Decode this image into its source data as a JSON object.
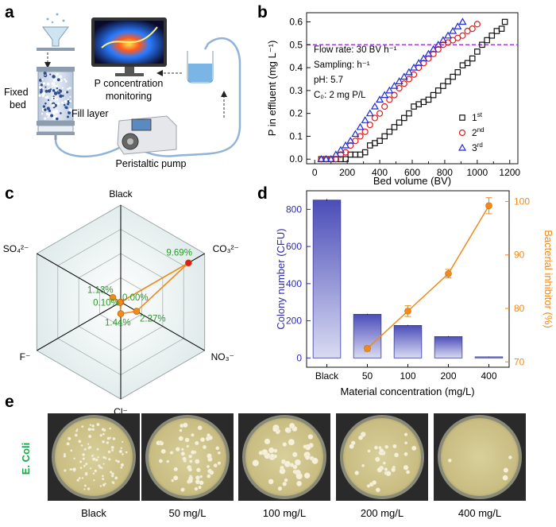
{
  "panel_labels": {
    "a": "a",
    "b": "b",
    "c": "c",
    "d": "d",
    "e": "e"
  },
  "panel_a": {
    "fixed_bed": "Fixed bed",
    "fill_layer": "Fill layer",
    "monitor_line1": "P concentration",
    "monitor_line2": "monitoring",
    "pump": "Peristaltic pump"
  },
  "chart_data": [
    {
      "id": "b",
      "type": "scatter",
      "xlabel": "Bed volume (BV)",
      "ylabel": "P in effluent (mg L⁻¹)",
      "xlim": [
        -50,
        1250
      ],
      "ylim": [
        -0.02,
        0.64
      ],
      "xticks": [
        0,
        100,
        200,
        300,
        400,
        500,
        600,
        700,
        800,
        900,
        1000,
        1100,
        1200
      ],
      "xtick_labels": [
        "0",
        "",
        "200",
        "",
        "400",
        "",
        "600",
        "",
        "800",
        "",
        "1000",
        "",
        "1200"
      ],
      "yticks": [
        0.0,
        0.1,
        0.2,
        0.3,
        0.4,
        0.5,
        0.6
      ],
      "ytick_labels": [
        "0.0",
        "0.1",
        "0.2",
        "0.3",
        "0.4",
        "0.5",
        "0.6"
      ],
      "threshold": 0.5,
      "threshold_color": "#9b30d9",
      "annotations": [
        "Flow rate: 30 BV h⁻¹",
        "Sampling: h⁻¹",
        "pH: 5.7",
        "C₀: 2 mg P/L"
      ],
      "series": [
        {
          "name": "1st",
          "base": "1",
          "sup": "st",
          "marker": "square",
          "color": "#111111",
          "x": [
            40,
            70,
            100,
            130,
            160,
            190,
            220,
            250,
            280,
            310,
            340,
            370,
            400,
            430,
            460,
            490,
            520,
            550,
            580,
            610,
            640,
            670,
            700,
            730,
            760,
            790,
            820,
            850,
            880,
            910,
            940,
            970,
            1000,
            1030,
            1060,
            1090,
            1120,
            1150,
            1170
          ],
          "y": [
            0.0,
            0.0,
            0.0,
            0.0,
            0.0,
            0.0,
            0.02,
            0.02,
            0.02,
            0.03,
            0.06,
            0.07,
            0.08,
            0.1,
            0.12,
            0.14,
            0.16,
            0.18,
            0.2,
            0.23,
            0.24,
            0.25,
            0.26,
            0.28,
            0.3,
            0.32,
            0.34,
            0.36,
            0.38,
            0.41,
            0.42,
            0.44,
            0.47,
            0.5,
            0.52,
            0.54,
            0.56,
            0.57,
            0.6
          ]
        },
        {
          "name": "2nd",
          "base": "2",
          "sup": "nd",
          "marker": "circle",
          "color": "#e01b1b",
          "x": [
            40,
            70,
            100,
            130,
            160,
            190,
            220,
            250,
            280,
            310,
            340,
            370,
            400,
            430,
            460,
            490,
            520,
            550,
            580,
            610,
            640,
            670,
            700,
            730,
            760,
            790,
            820,
            850,
            880,
            910,
            940,
            970,
            1000
          ],
          "y": [
            0.0,
            0.0,
            0.0,
            0.0,
            0.02,
            0.03,
            0.06,
            0.08,
            0.1,
            0.12,
            0.15,
            0.18,
            0.2,
            0.23,
            0.26,
            0.28,
            0.31,
            0.33,
            0.35,
            0.37,
            0.4,
            0.42,
            0.44,
            0.46,
            0.48,
            0.5,
            0.51,
            0.52,
            0.53,
            0.54,
            0.56,
            0.57,
            0.59
          ]
        },
        {
          "name": "3rd",
          "base": "3",
          "sup": "rd",
          "marker": "triangle",
          "color": "#1f2bd6",
          "x": [
            40,
            70,
            100,
            130,
            160,
            190,
            220,
            250,
            280,
            310,
            340,
            370,
            400,
            430,
            460,
            490,
            520,
            550,
            580,
            610,
            640,
            670,
            700,
            730,
            760,
            790,
            820,
            850,
            880,
            910
          ],
          "y": [
            0.0,
            0.0,
            0.0,
            0.02,
            0.04,
            0.06,
            0.08,
            0.11,
            0.14,
            0.17,
            0.2,
            0.23,
            0.26,
            0.28,
            0.3,
            0.32,
            0.34,
            0.36,
            0.38,
            0.4,
            0.42,
            0.44,
            0.46,
            0.48,
            0.5,
            0.52,
            0.54,
            0.56,
            0.58,
            0.6
          ]
        }
      ]
    },
    {
      "id": "c",
      "type": "radar",
      "axes": [
        "Black",
        "CO₃²⁻",
        "NO₃⁻",
        "Cl⁻",
        "F⁻",
        "SO₄²⁻"
      ],
      "scale_max": 12,
      "rings": 4,
      "values": [
        0.0,
        9.69,
        2.27,
        1.44,
        0.1,
        1.13
      ],
      "value_labels": [
        "0.00%",
        "9.69%",
        "2.27%",
        "1.44%",
        "0.10%",
        "1.13%"
      ],
      "line_color": "#f08a1c",
      "highlight_color": "#e01b1b",
      "label_color": "#2a9a2a"
    },
    {
      "id": "d",
      "type": "bar+line",
      "categories": [
        "Black",
        "50",
        "100",
        "200",
        "400"
      ],
      "xlabel": "Material concentration (mg/L)",
      "ylabel_left": "Colony number (CFU)",
      "ylabel_right": "Bacterial inhibitor (%)",
      "bars": [
        850,
        235,
        175,
        115,
        6
      ],
      "bar_errors": [
        5,
        3,
        3,
        3,
        2
      ],
      "ylim_left": [
        -50,
        900
      ],
      "yticks_left": [
        0,
        200,
        400,
        600,
        800
      ],
      "line_categories": [
        "50",
        "100",
        "200",
        "400"
      ],
      "line": [
        72.5,
        79.5,
        86.5,
        99.2
      ],
      "line_errors": [
        0.5,
        1.0,
        0.8,
        1.5
      ],
      "ylim_right": [
        69,
        102
      ],
      "yticks_right": [
        70,
        80,
        90,
        100
      ],
      "left_color": "#2b2bb3",
      "right_color": "#f08a1c"
    }
  ],
  "panel_e": {
    "row_label": "E. Coli",
    "plates": [
      {
        "label": "Black",
        "colonies": 95,
        "size": 1.6
      },
      {
        "label": "50 mg/L",
        "colonies": 60,
        "size": 2.4
      },
      {
        "label": "100 mg/L",
        "colonies": 45,
        "size": 3.2
      },
      {
        "label": "200 mg/L",
        "colonies": 35,
        "size": 2.6
      },
      {
        "label": "400 mg/L",
        "colonies": 4,
        "size": 2.8
      }
    ]
  }
}
